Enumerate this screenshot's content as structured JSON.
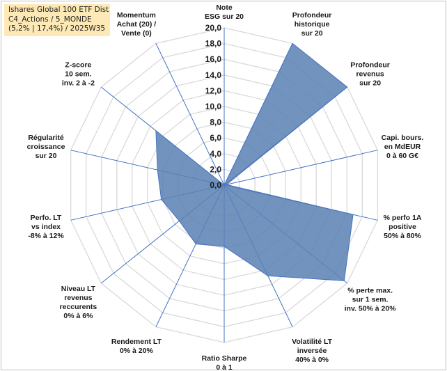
{
  "title_box": {
    "line1": "Ishares Global 100 ETF Dist",
    "line2": "C4_Actions / 5_MONDE",
    "line3": "(5,2% | 17,4%) / 2025W35"
  },
  "colors": {
    "fill": "#5b80b4",
    "stroke": "#4472c4",
    "grid": "#d9d9d9",
    "spokes": "#4472c4",
    "title_bg": "#fde9b5"
  },
  "chart_data": {
    "type": "radar",
    "title": "",
    "range": [
      0,
      20
    ],
    "tick_step": 2,
    "tick_labels": [
      "0,0",
      "2,0",
      "4,0",
      "6,0",
      "8,0",
      "10,0",
      "12,0",
      "14,0",
      "16,0",
      "18,0",
      "20,0"
    ],
    "grid": true,
    "legend": "none",
    "axes": [
      [
        "Note",
        "ESG sur 20"
      ],
      [
        "Profondeur",
        "historique",
        "sur 20"
      ],
      [
        "Profondeur",
        "revenus",
        "sur 20"
      ],
      [
        "Capi. bours.",
        "en MdEUR",
        "0 à 60 G€"
      ],
      [
        "% perfo 1A",
        "positive",
        "50% à 80%"
      ],
      [
        "% perte max.",
        "sur 1 sem.",
        "inv. 50% à 20%"
      ],
      [
        "Volatilité LT",
        "inversée",
        "40% à 0%"
      ],
      [
        "Ratio Sharpe",
        "0 à 1"
      ],
      [
        "Rendement LT",
        "0% à 20%"
      ],
      [
        "Niveau LT",
        "revenus",
        "reccurents",
        "0% à 6%"
      ],
      [
        "Perfo. LT",
        "vs index",
        "-8% à 12%"
      ],
      [
        "Régularité",
        "croissance",
        "sur 20"
      ],
      [
        "Z-score",
        "10 sem.",
        "inv. 2 à -2"
      ],
      [
        "Momentum",
        "Achat (20) /",
        "Vente (0)"
      ]
    ],
    "series": [
      {
        "values": [
          0,
          20,
          20,
          0.3,
          16.8,
          19.5,
          12.8,
          7.8,
          8.3,
          7.3,
          8.2,
          8.7,
          11.1,
          0
        ]
      }
    ]
  }
}
